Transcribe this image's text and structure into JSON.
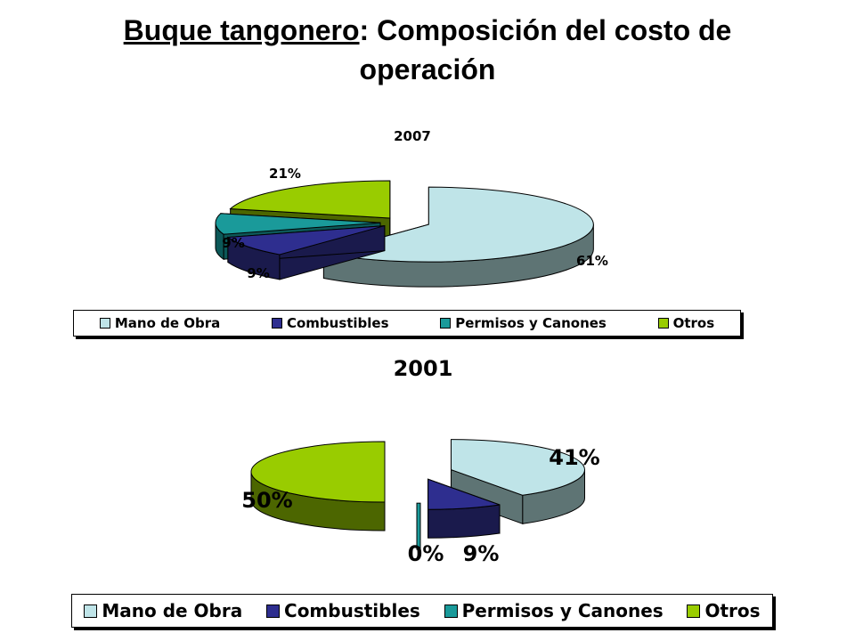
{
  "title": {
    "part1": "Buque tangonero",
    "part2": ": Composición del costo de",
    "line2": "operación"
  },
  "chart_data": [
    {
      "type": "pie",
      "title": "2007",
      "categories": [
        "Mano de Obra",
        "Combustibles",
        "Permisos y Canones",
        "Otros"
      ],
      "values": [
        61,
        9,
        9,
        21
      ],
      "labels": [
        "61%",
        "9%",
        "9%",
        "21%"
      ],
      "colors": [
        "#bfe4e8",
        "#2e2e8f",
        "#1a9a9a",
        "#99cc00"
      ],
      "side_colors": [
        "#5e7474",
        "#1a1a4c",
        "#0c5858",
        "#4c6600"
      ],
      "legend_position": "bottom",
      "exploded": true,
      "three_d": true
    },
    {
      "type": "pie",
      "title": "2001",
      "categories": [
        "Mano de Obra",
        "Combustibles",
        "Permisos y Canones",
        "Otros"
      ],
      "values": [
        41,
        9,
        0,
        50
      ],
      "labels": [
        "41%",
        "9%",
        "0%",
        "50%"
      ],
      "colors": [
        "#bfe4e8",
        "#2e2e8f",
        "#1a9a9a",
        "#99cc00"
      ],
      "side_colors": [
        "#5e7474",
        "#1a1a4c",
        "#0c5858",
        "#4c6600"
      ],
      "legend_position": "bottom",
      "exploded": true,
      "three_d": true
    }
  ]
}
